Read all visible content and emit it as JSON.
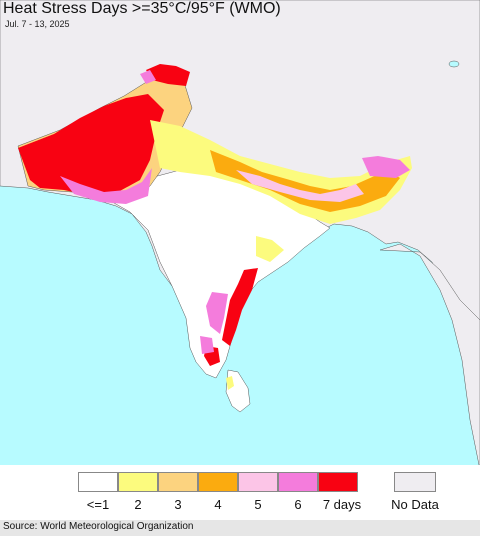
{
  "title": "Heat Stress Days >=35°C/95°F (WMO)",
  "date_range": "Jul. 7 - 13, 2025",
  "source": "Source: World Meteorological Organization",
  "colors": {
    "ocean": "#b7fbff",
    "land_nodata": "#efedf1",
    "c1": "#ffffff",
    "c2": "#fcfb7e",
    "c3": "#fcd37f",
    "c4": "#fbab0f",
    "c5": "#fcc5e7",
    "c6": "#f47cdc",
    "c7": "#f80212",
    "nodata": "#efedf1"
  },
  "legend": {
    "items": [
      {
        "label": "<=1",
        "color": "#ffffff"
      },
      {
        "label": "2",
        "color": "#fcfb7e"
      },
      {
        "label": "3",
        "color": "#fcd37f"
      },
      {
        "label": "4",
        "color": "#fbab0f"
      },
      {
        "label": "5",
        "color": "#fcc5e7"
      },
      {
        "label": "6",
        "color": "#f47cdc"
      },
      {
        "label": "7 days",
        "color": "#f80212"
      }
    ],
    "nodata": {
      "label": "No Data",
      "color": "#efedf1"
    }
  }
}
